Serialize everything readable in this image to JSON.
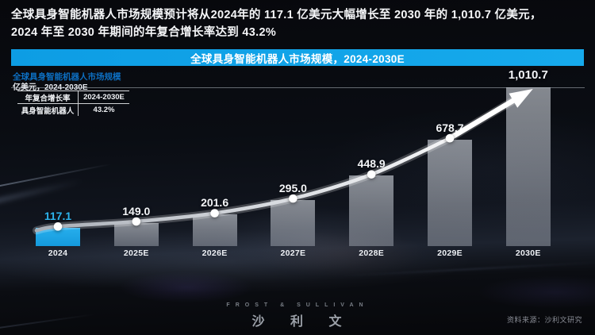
{
  "header": {
    "line1": "全球具身智能机器人市场规模预计将从2024年的 117.1 亿美元大幅增长至 2030 年的 1,010.7 亿美元，",
    "line2": "2024 年至 2030 年期间的年复合增长率达到 43.2%"
  },
  "banner": {
    "title": "全球具身智能机器人市场规模，2024-2030E"
  },
  "chart": {
    "title": "全球具身智能机器人市场规模",
    "unit_label": "亿美元，2024-2030E",
    "legend": {
      "header_left": "年复合增长率",
      "header_right": "2024-2030E",
      "row_left": "具身智能机器人",
      "row_right": "43.2%"
    }
  },
  "chart_data": {
    "type": "bar",
    "title": "全球具身智能机器人市场规模，2024-2030E",
    "ylabel": "亿美元",
    "categories": [
      "2024",
      "2025E",
      "2026E",
      "2027E",
      "2028E",
      "2029E",
      "2030E"
    ],
    "values": [
      117.1,
      149.0,
      201.6,
      295.0,
      448.9,
      678.7,
      1010.7
    ],
    "value_labels": [
      "117.1",
      "149.0",
      "201.6",
      "295.0",
      "448.9",
      "678.7",
      "1,010.7"
    ],
    "cagr_2024_2030e": "43.2%",
    "ylim": [
      0,
      1010.7
    ],
    "highlight_index": 0,
    "grid": "top-line-only",
    "legend_position": "top-left",
    "colors": {
      "highlight_bar": "#18a5e8",
      "default_bar": "rgba(200,206,215,0.55)",
      "trend_line": "#ffffff",
      "highlight_label": "#2db4ee",
      "banner": "#11a3e8"
    }
  },
  "footer": {
    "brand_en": "FROST & SULLIVAN",
    "brand_cn": "沙 利 文",
    "source": "资料来源：沙利文研究"
  }
}
